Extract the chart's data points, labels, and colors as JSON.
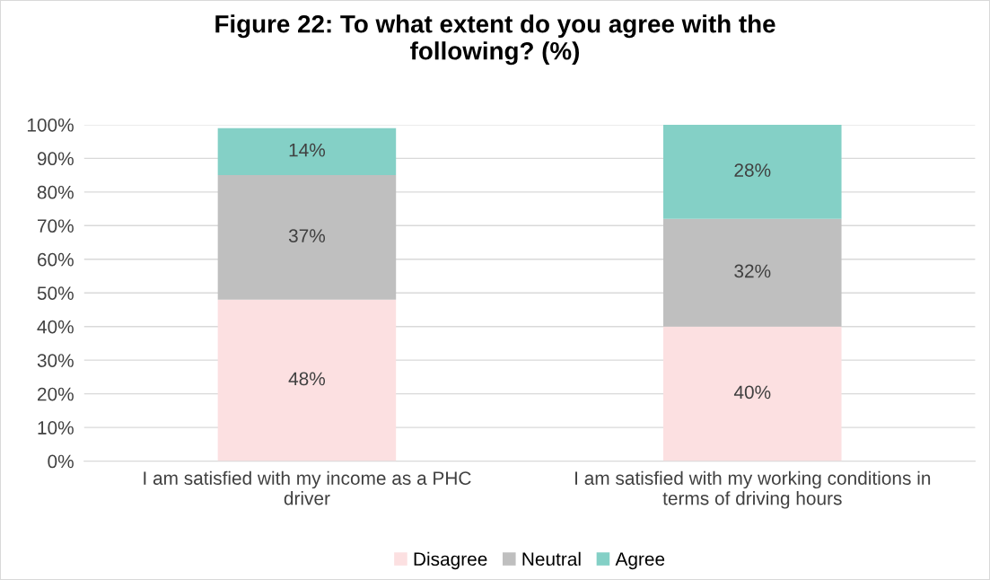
{
  "chart_data": {
    "type": "bar",
    "stacked": true,
    "title": "Figure 22: To what extent do you agree with the\nfollowing? (%)",
    "categories": [
      "I am satisfied with my income as a PHC\ndriver",
      "I am satisfied with my working conditions in\nterms of driving hours"
    ],
    "series": [
      {
        "name": "Disagree",
        "color": "#fce0e1",
        "values": [
          48,
          40
        ],
        "value_labels": [
          "48%",
          "40%"
        ]
      },
      {
        "name": "Neutral",
        "color": "#bfbfbf",
        "values": [
          37,
          32
        ],
        "value_labels": [
          "37%",
          "32%"
        ]
      },
      {
        "name": "Agree",
        "color": "#84d0c6",
        "values": [
          14,
          28
        ],
        "value_labels": [
          "14%",
          "28%"
        ]
      }
    ],
    "ylim": [
      0,
      100
    ],
    "yticks": [
      {
        "value": 0,
        "label": "0%"
      },
      {
        "value": 10,
        "label": "10%"
      },
      {
        "value": 20,
        "label": "20%"
      },
      {
        "value": 30,
        "label": "30%"
      },
      {
        "value": 40,
        "label": "40%"
      },
      {
        "value": 50,
        "label": "50%"
      },
      {
        "value": 60,
        "label": "60%"
      },
      {
        "value": 70,
        "label": "70%"
      },
      {
        "value": 80,
        "label": "80%"
      },
      {
        "value": 90,
        "label": "90%"
      },
      {
        "value": 100,
        "label": "100%"
      }
    ],
    "grid": "y",
    "legend": "bottom"
  }
}
